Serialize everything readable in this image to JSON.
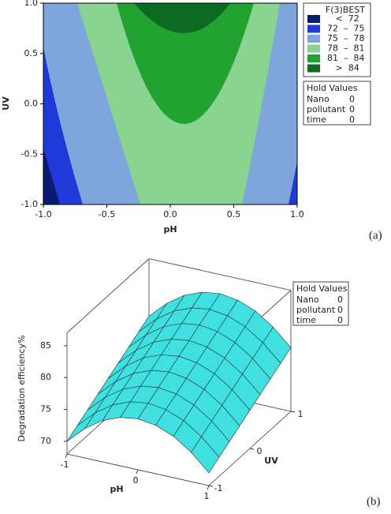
{
  "chart_data": [
    {
      "type": "contour",
      "x_label": "pH",
      "y_label": "UV",
      "panel_label": "(a)",
      "xlim": [
        -1,
        1
      ],
      "ylim": [
        -1,
        1
      ],
      "xticks": [
        {
          "value": -1,
          "label": "-1.0"
        },
        {
          "value": -0.5,
          "label": "-0.5"
        },
        {
          "value": 0,
          "label": "0.0"
        },
        {
          "value": 0.5,
          "label": "0.5"
        },
        {
          "value": 1,
          "label": "1.0"
        }
      ],
      "yticks": [
        {
          "value": -1,
          "label": "-1.0"
        },
        {
          "value": -0.5,
          "label": "-0.5"
        },
        {
          "value": 0,
          "label": "0.0"
        },
        {
          "value": 0.5,
          "label": "0.5"
        },
        {
          "value": 1,
          "label": "1.0"
        }
      ],
      "legend": {
        "title": "F(3)BEST",
        "entries": [
          {
            "label": "   <  72",
            "color": "#0b1a70"
          },
          {
            "label": "72  –  75",
            "color": "#1f3ad8"
          },
          {
            "label": "75  –  78",
            "color": "#7ea6dc"
          },
          {
            "label": "78  –  81",
            "color": "#88d490"
          },
          {
            "label": "81  –  84",
            "color": "#22a230"
          },
          {
            "label": "   >  84",
            "color": "#0d6a22"
          }
        ]
      },
      "hold_values": {
        "title": "Hold Values",
        "rows": [
          [
            "Nano",
            0
          ],
          [
            "pollutant",
            0
          ],
          [
            "time",
            0
          ]
        ]
      }
    },
    {
      "type": "surface",
      "x_label": "pH",
      "y_label": "UV",
      "z_label": "Degradation efficiency%",
      "panel_label": "(b)",
      "color": "#40e0e0",
      "xlim": [
        -1,
        1
      ],
      "ylim": [
        -1,
        1
      ],
      "zlim": [
        68,
        87
      ],
      "xticks": [
        -1,
        0,
        1
      ],
      "yticks": [
        -1,
        0,
        1
      ],
      "zticks": [
        70,
        75,
        80,
        85
      ],
      "x": [
        -1,
        -0.75,
        -0.5,
        -0.25,
        0,
        0.25,
        0.5,
        0.75,
        1
      ],
      "y": [
        -1,
        -0.75,
        -0.5,
        -0.25,
        0,
        0.25,
        0.5,
        0.75,
        1
      ],
      "z": [
        [
          70,
          72.6,
          74.5,
          75.6,
          76,
          75.6,
          74.5,
          72.6,
          70
        ],
        [
          71,
          73.6,
          75.5,
          76.6,
          77,
          76.6,
          75.5,
          73.6,
          71
        ],
        [
          72,
          74.6,
          76.5,
          77.6,
          78,
          77.6,
          76.5,
          74.6,
          72
        ],
        [
          73,
          75.6,
          77.5,
          78.6,
          79,
          78.6,
          77.5,
          75.6,
          73
        ],
        [
          74,
          76.6,
          78.5,
          79.6,
          80,
          79.6,
          78.5,
          76.6,
          74
        ],
        [
          75,
          77.6,
          79.5,
          80.6,
          81,
          80.6,
          79.5,
          77.6,
          75
        ],
        [
          76,
          78.6,
          80.5,
          81.6,
          82,
          81.6,
          80.5,
          78.6,
          76
        ],
        [
          77,
          79.6,
          81.5,
          82.6,
          83,
          82.6,
          81.5,
          79.6,
          77
        ],
        [
          78,
          80.6,
          82.5,
          83.6,
          84,
          83.6,
          82.5,
          80.6,
          78
        ]
      ],
      "hold_values": {
        "title": "Hold Values",
        "rows": [
          [
            "Nano",
            0
          ],
          [
            "pollutant",
            0
          ],
          [
            "time",
            0
          ]
        ]
      }
    }
  ]
}
